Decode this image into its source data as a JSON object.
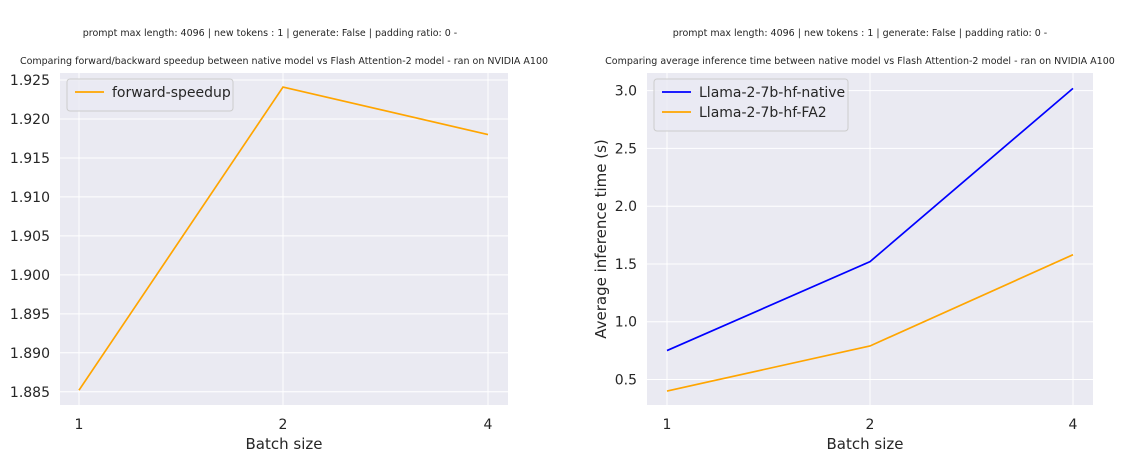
{
  "chart_data": [
    {
      "type": "line",
      "suptitle": "prompt max length: 4096 | new tokens : 1 | generate: False | padding ratio: 0 -",
      "title": "Comparing forward/backward speedup between native model vs Flash Attention-2 model - ran on NVIDIA A100",
      "xlabel": "Batch size",
      "ylabel": "",
      "categories": [
        "1",
        "2",
        "4"
      ],
      "yticks": [
        "1.885",
        "1.890",
        "1.895",
        "1.900",
        "1.905",
        "1.910",
        "1.915",
        "1.920",
        "1.925"
      ],
      "ylim": [
        1.8833,
        1.9259
      ],
      "grid": true,
      "legend": "top-left",
      "series": [
        {
          "name": "forward-speedup",
          "color": "#ffa500",
          "values": [
            1.8852,
            1.9241,
            1.918
          ]
        }
      ]
    },
    {
      "type": "line",
      "suptitle": "prompt max length: 4096 | new tokens : 1 | generate: False | padding ratio: 0 -",
      "title": "Comparing average inference time between native model vs Flash Attention-2 model - ran on NVIDIA A100",
      "xlabel": "Batch size",
      "ylabel": "Average inference time (s)",
      "categories": [
        "1",
        "2",
        "4"
      ],
      "yticks": [
        "0.5",
        "1.0",
        "1.5",
        "2.0",
        "2.5",
        "3.0"
      ],
      "ylim": [
        0.279,
        3.153
      ],
      "grid": true,
      "legend": "top-left",
      "series": [
        {
          "name": "Llama-2-7b-hf-native",
          "color": "#0000ff",
          "values": [
            0.75,
            1.52,
            3.02
          ]
        },
        {
          "name": "Llama-2-7b-hf-FA2",
          "color": "#ffa500",
          "values": [
            0.4,
            0.79,
            1.58
          ]
        }
      ]
    }
  ]
}
